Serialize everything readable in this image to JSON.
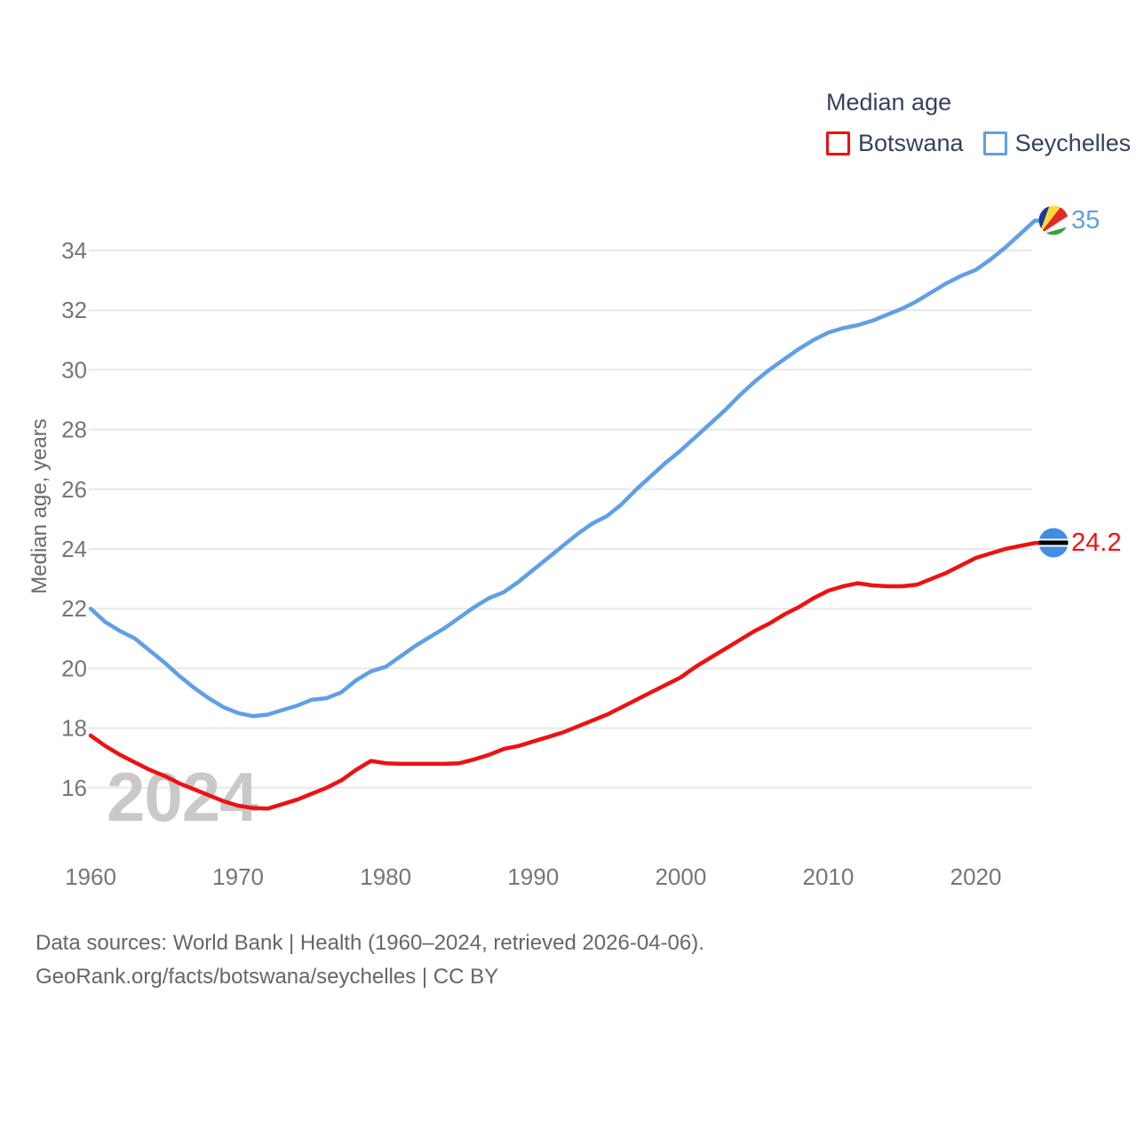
{
  "legend": {
    "title": "Median age",
    "items": [
      {
        "label": "Botswana"
      },
      {
        "label": "Seychelles"
      }
    ]
  },
  "chart_data": {
    "type": "line",
    "title": "Median age",
    "xlabel": "",
    "ylabel": "Median age, years",
    "grid": "horizontal",
    "grid_color": "#e8e8e8",
    "legend_position": "top-right",
    "watermark": "2024",
    "ylim": [
      15,
      35.5
    ],
    "xlim": [
      1960,
      2024
    ],
    "yticks": [
      16,
      18,
      20,
      22,
      24,
      26,
      28,
      30,
      32,
      34
    ],
    "xticks": [
      1960,
      1970,
      1980,
      1990,
      2000,
      2010,
      2020
    ],
    "x": [
      1960,
      1961,
      1962,
      1963,
      1964,
      1965,
      1966,
      1967,
      1968,
      1969,
      1970,
      1971,
      1972,
      1973,
      1974,
      1975,
      1976,
      1977,
      1978,
      1979,
      1980,
      1981,
      1982,
      1983,
      1984,
      1985,
      1986,
      1987,
      1988,
      1989,
      1990,
      1991,
      1992,
      1993,
      1994,
      1995,
      1996,
      1997,
      1998,
      1999,
      2000,
      2001,
      2002,
      2003,
      2004,
      2005,
      2006,
      2007,
      2008,
      2009,
      2010,
      2011,
      2012,
      2013,
      2014,
      2015,
      2016,
      2017,
      2018,
      2019,
      2020,
      2021,
      2022,
      2023,
      2024
    ],
    "series": [
      {
        "name": "Botswana",
        "color": "#ee1111",
        "end_label": "24.2",
        "end_value": 24.2,
        "values": [
          17.75,
          17.4,
          17.1,
          16.85,
          16.6,
          16.4,
          16.15,
          15.95,
          15.75,
          15.55,
          15.4,
          15.32,
          15.3,
          15.45,
          15.6,
          15.8,
          16.0,
          16.25,
          16.6,
          16.9,
          16.82,
          16.8,
          16.8,
          16.8,
          16.8,
          16.82,
          16.95,
          17.1,
          17.3,
          17.4,
          17.55,
          17.7,
          17.85,
          18.05,
          18.25,
          18.45,
          18.7,
          18.95,
          19.2,
          19.45,
          19.7,
          20.05,
          20.35,
          20.65,
          20.95,
          21.25,
          21.5,
          21.8,
          22.05,
          22.35,
          22.6,
          22.75,
          22.85,
          22.78,
          22.75,
          22.75,
          22.8,
          23.0,
          23.2,
          23.45,
          23.7,
          23.85,
          24.0,
          24.1,
          24.2
        ]
      },
      {
        "name": "Seychelles",
        "color": "#5f9fe6",
        "end_label": "35",
        "end_value": 35,
        "values": [
          22.0,
          21.55,
          21.25,
          21.0,
          20.6,
          20.2,
          19.75,
          19.35,
          19.0,
          18.7,
          18.5,
          18.4,
          18.45,
          18.6,
          18.75,
          18.95,
          19.0,
          19.2,
          19.6,
          19.9,
          20.05,
          20.4,
          20.75,
          21.05,
          21.35,
          21.7,
          22.05,
          22.35,
          22.55,
          22.9,
          23.3,
          23.7,
          24.1,
          24.5,
          24.85,
          25.1,
          25.5,
          26.0,
          26.45,
          26.9,
          27.3,
          27.75,
          28.2,
          28.65,
          29.15,
          29.6,
          30.0,
          30.35,
          30.7,
          31.0,
          31.25,
          31.4,
          31.5,
          31.65,
          31.85,
          32.05,
          32.3,
          32.6,
          32.9,
          33.15,
          33.35,
          33.7,
          34.1,
          34.55,
          35.0
        ]
      }
    ]
  },
  "footer": {
    "line1": "Data sources: World Bank | Health (1960–2024, retrieved 2026-04-06).",
    "line2": "GeoRank.org/facts/botswana/seychelles | CC BY"
  }
}
